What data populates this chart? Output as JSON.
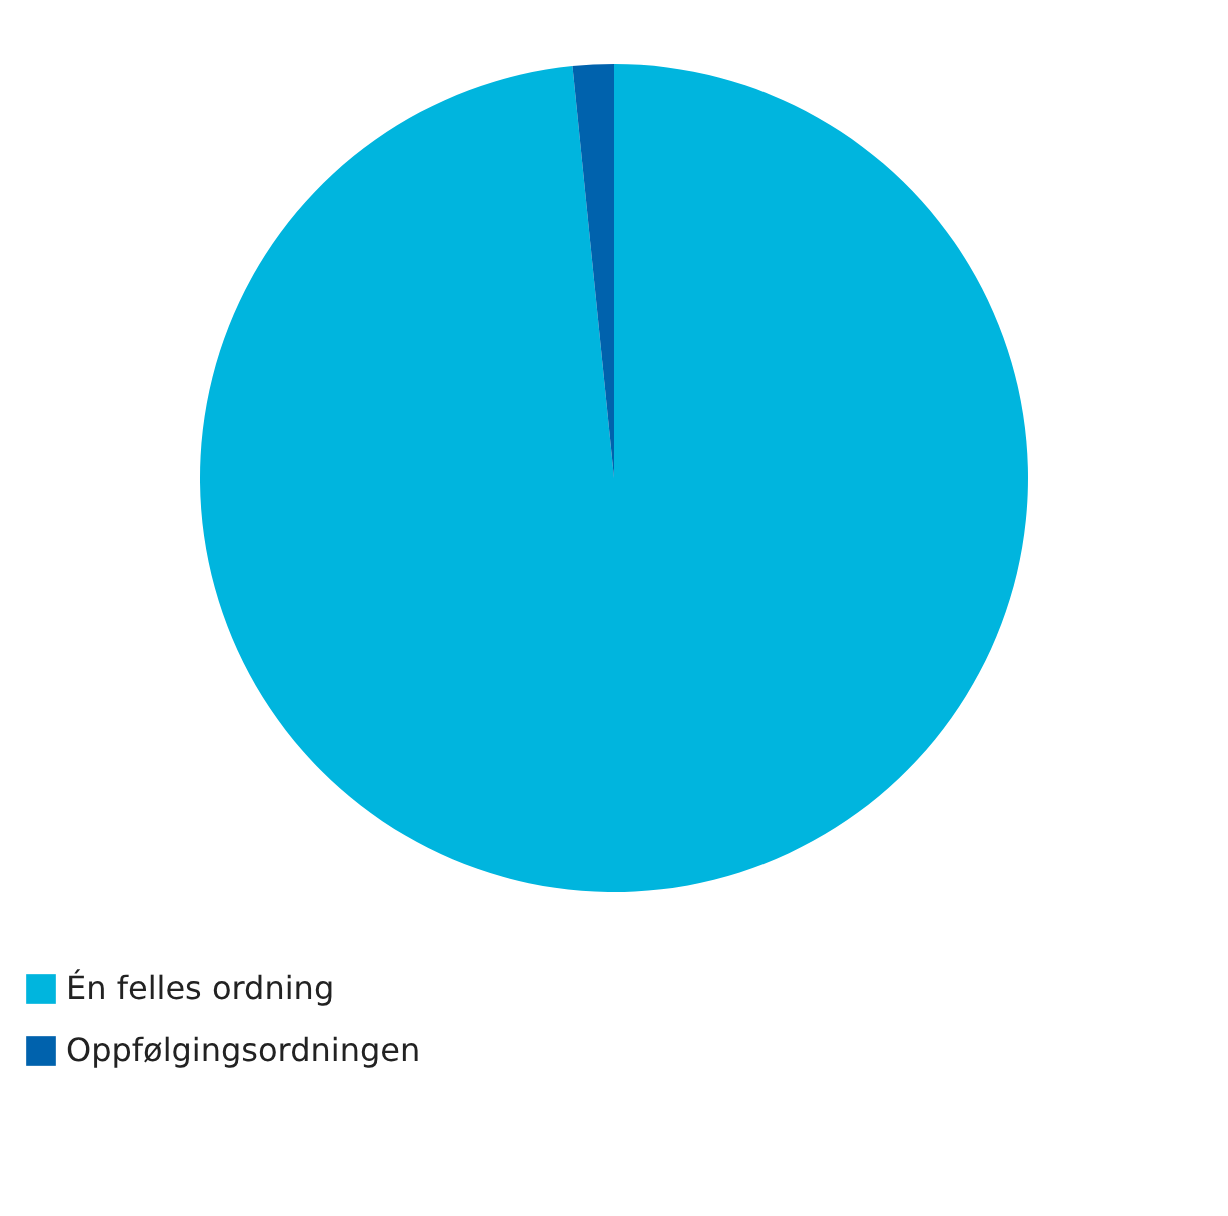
{
  "chart_data": {
    "type": "pie",
    "categories": [
      "Én felles ordning",
      "Oppfølgingsordningen"
    ],
    "values": [
      98.4,
      1.6
    ],
    "colors": [
      "#00b5de",
      "#0062ad"
    ],
    "legend": "bottom"
  }
}
